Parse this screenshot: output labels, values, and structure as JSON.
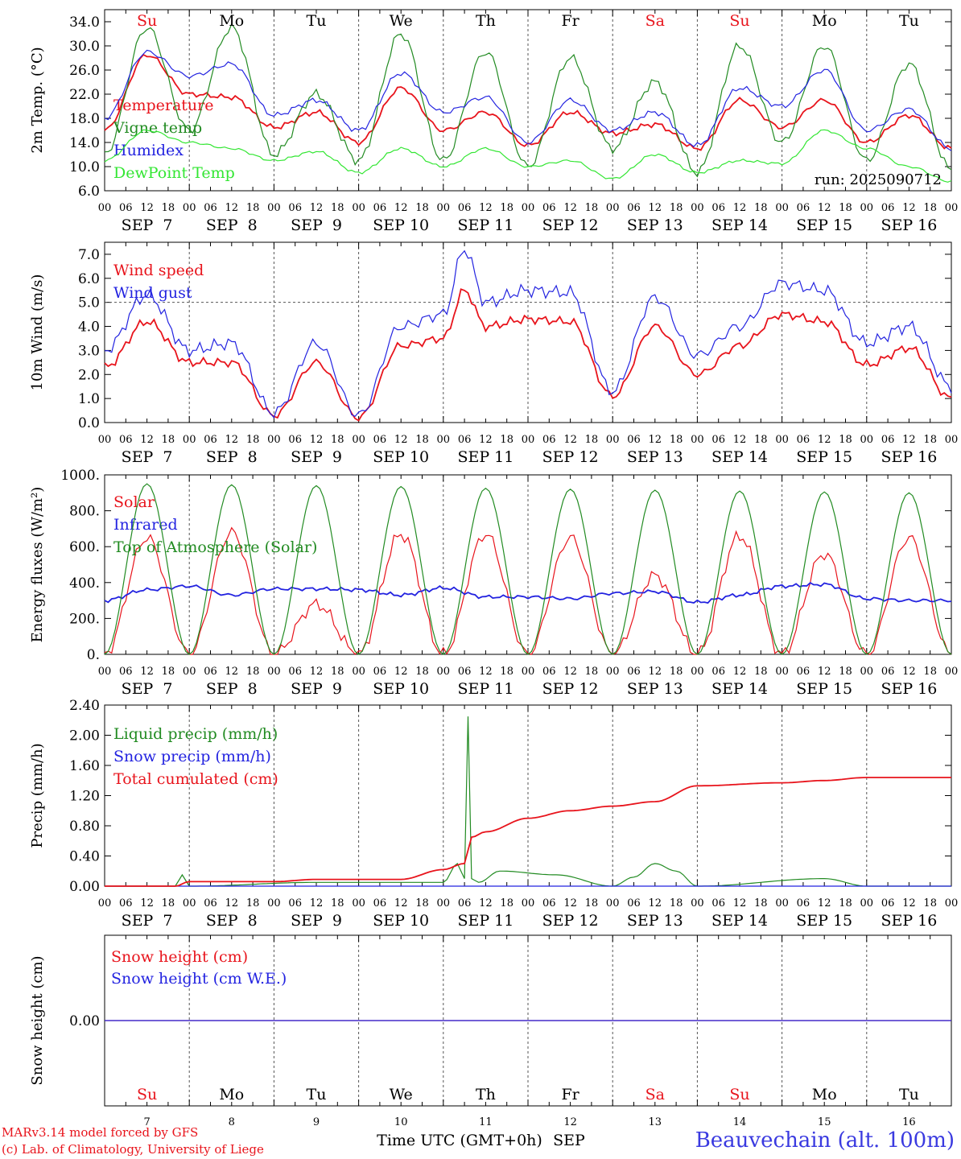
{
  "chart_data": [
    {
      "type": "line",
      "ylabel": "2m Temp. (°C)",
      "yticks": [
        "6.0",
        "10.0",
        "14.0",
        "18.0",
        "22.0",
        "26.0",
        "30.0",
        "34.0"
      ],
      "ylim": [
        6,
        36
      ],
      "annotation": "run: 2025090712",
      "series": [
        {
          "name": "Temperature",
          "color": "#e8141c",
          "x": [
            0,
            12,
            24,
            36,
            48,
            60,
            72,
            84,
            96,
            108,
            120,
            132,
            144,
            156,
            168,
            180,
            192,
            204,
            216,
            228,
            240
          ],
          "values": [
            16,
            28.5,
            22,
            21.5,
            16.5,
            19,
            14,
            23,
            16,
            19,
            13.5,
            19,
            15.5,
            17,
            13,
            21,
            16.5,
            21,
            14,
            18.5,
            13
          ]
        },
        {
          "name": "Vigne temp",
          "color": "#228b22",
          "x": [
            0,
            12,
            24,
            36,
            48,
            60,
            72,
            84,
            96,
            108,
            120,
            132,
            144,
            156,
            168,
            180,
            192,
            204,
            216,
            228,
            240
          ],
          "values": [
            12,
            33,
            16,
            33,
            12,
            22,
            11,
            32,
            11,
            29,
            10,
            28,
            13,
            24,
            9,
            30,
            14,
            30,
            11,
            27,
            9.5
          ]
        },
        {
          "name": "Humidex",
          "color": "#2323e0",
          "x": [
            0,
            12,
            24,
            36,
            48,
            60,
            72,
            84,
            96,
            108,
            120,
            132,
            144,
            156,
            168,
            180,
            192,
            204,
            216,
            228,
            240
          ],
          "values": [
            18,
            29,
            25,
            27,
            18.5,
            21,
            16,
            25.5,
            19,
            21.5,
            14,
            21,
            16,
            19,
            13.5,
            23,
            20,
            26,
            16,
            19.5,
            13
          ]
        },
        {
          "name": "DewPoint Temp",
          "color": "#33e633",
          "x": [
            0,
            12,
            24,
            36,
            48,
            60,
            72,
            84,
            96,
            108,
            120,
            132,
            144,
            156,
            168,
            180,
            192,
            204,
            216,
            228,
            240
          ],
          "values": [
            11,
            16,
            14,
            13,
            11,
            12.5,
            9,
            13,
            10,
            13,
            10,
            11,
            8,
            12,
            9,
            11,
            10.5,
            16,
            13,
            10,
            7.5
          ]
        }
      ]
    },
    {
      "type": "line",
      "ylabel": "10m Wind (m/s)",
      "yticks": [
        "0.0",
        "1.0",
        "2.0",
        "3.0",
        "4.0",
        "5.0",
        "6.0",
        "7.0"
      ],
      "ylim": [
        0,
        7.5
      ],
      "reference_line": 5.0,
      "series": [
        {
          "name": "Wind speed",
          "color": "#e8141c",
          "x": [
            0,
            12,
            24,
            36,
            48,
            60,
            72,
            84,
            96,
            102,
            108,
            120,
            132,
            144,
            156,
            168,
            180,
            192,
            204,
            216,
            228,
            240
          ],
          "values": [
            2.3,
            4.2,
            2.5,
            2.5,
            0.3,
            2.5,
            0.2,
            3.2,
            3.5,
            5.5,
            4,
            4.3,
            4.2,
            1.1,
            4,
            2,
            3.2,
            4.5,
            4.2,
            2.4,
            3.1,
            1
          ]
        },
        {
          "name": "Wind gust",
          "color": "#2323e0",
          "x": [
            0,
            12,
            24,
            36,
            48,
            60,
            72,
            84,
            96,
            102,
            108,
            120,
            132,
            144,
            156,
            168,
            180,
            192,
            204,
            216,
            228,
            240
          ],
          "values": [
            3,
            5.3,
            3,
            3.3,
            0.4,
            3.3,
            0.3,
            4,
            4.5,
            7.2,
            5,
            5.5,
            5.4,
            1.3,
            5.2,
            2.8,
            4,
            5.8,
            5.5,
            3.3,
            4,
            1.5
          ]
        }
      ]
    },
    {
      "type": "line",
      "ylabel": "Energy fluxes (W/m²)",
      "yticks": [
        "0.",
        "200.",
        "400.",
        "600.",
        "800.",
        "1000."
      ],
      "ylim": [
        0,
        1000
      ],
      "series": [
        {
          "name": "Solar",
          "color": "#e8141c",
          "x": [
            0,
            12,
            24,
            36,
            48,
            60,
            72,
            84,
            96,
            108,
            120,
            132,
            144,
            156,
            168,
            180,
            192,
            204,
            216,
            228,
            240
          ],
          "values": [
            0,
            650,
            0,
            680,
            0,
            280,
            0,
            670,
            0,
            670,
            0,
            650,
            0,
            440,
            0,
            660,
            0,
            560,
            0,
            650,
            0
          ]
        },
        {
          "name": "Infrared",
          "color": "#2323e0",
          "x": [
            0,
            12,
            24,
            36,
            48,
            60,
            72,
            84,
            96,
            108,
            120,
            132,
            144,
            156,
            168,
            180,
            192,
            204,
            216,
            228,
            240
          ],
          "values": [
            300,
            360,
            380,
            330,
            365,
            365,
            360,
            330,
            370,
            320,
            320,
            310,
            340,
            350,
            290,
            330,
            380,
            390,
            310,
            300,
            300
          ]
        },
        {
          "name": "Top of Atmosphere (Solar)",
          "color": "#228b22",
          "x": [
            0,
            12,
            24,
            36,
            48,
            60,
            72,
            84,
            96,
            108,
            120,
            132,
            144,
            156,
            168,
            180,
            192,
            204,
            216,
            228,
            240
          ],
          "values": [
            0,
            950,
            0,
            945,
            0,
            940,
            0,
            935,
            0,
            925,
            0,
            920,
            0,
            915,
            0,
            910,
            0,
            905,
            0,
            900,
            0
          ]
        }
      ]
    },
    {
      "type": "line",
      "ylabel": "Precip (mm/h)",
      "yticks": [
        "0.00",
        "0.40",
        "0.80",
        "1.20",
        "1.60",
        "2.00",
        "2.40"
      ],
      "ylim": [
        0,
        2.4
      ],
      "series": [
        {
          "name": "Liquid precip (mm/h)",
          "color": "#228b22",
          "x": [
            0,
            20,
            22,
            24,
            60,
            96,
            100,
            102,
            103,
            104,
            106,
            112,
            128,
            144,
            150,
            156,
            162,
            168,
            204,
            216,
            240
          ],
          "values": [
            0,
            0,
            0.15,
            0,
            0.05,
            0.05,
            0.3,
            0.1,
            2.25,
            0.1,
            0.05,
            0.2,
            0.15,
            0,
            0.12,
            0.3,
            0.2,
            0,
            0.1,
            0,
            0
          ]
        },
        {
          "name": "Snow precip (mm/h)",
          "color": "#2323e0",
          "x": [
            0,
            240
          ],
          "values": [
            0,
            0
          ]
        },
        {
          "name": "Total cumulated (cm)",
          "color": "#e8141c",
          "x": [
            0,
            20,
            24,
            48,
            60,
            84,
            96,
            102,
            104,
            108,
            120,
            132,
            144,
            156,
            168,
            192,
            204,
            216,
            240
          ],
          "values": [
            0,
            0,
            0.06,
            0.06,
            0.09,
            0.09,
            0.22,
            0.3,
            0.65,
            0.72,
            0.9,
            1,
            1.06,
            1.12,
            1.33,
            1.37,
            1.4,
            1.44,
            1.44
          ]
        }
      ]
    },
    {
      "type": "line",
      "ylabel": "Snow height (cm)",
      "yticks": [
        "0.00"
      ],
      "ylim": [
        -1,
        1
      ],
      "series": [
        {
          "name": "Snow height (cm)",
          "color": "#e8141c",
          "x": [
            0,
            240
          ],
          "values": [
            0,
            0
          ]
        },
        {
          "name": "Snow height (cm W.E.)",
          "color": "#2323e0",
          "x": [
            0,
            240
          ],
          "values": [
            0,
            0
          ]
        }
      ]
    }
  ],
  "time_axis": {
    "hour_ticks": [
      "00",
      "06",
      "12",
      "18"
    ],
    "dates": [
      "SEP  7",
      "SEP  8",
      "SEP  9",
      "SEP 10",
      "SEP 11",
      "SEP 12",
      "SEP 13",
      "SEP 14",
      "SEP 15",
      "SEP 16"
    ],
    "weekdays": [
      "Su",
      "Mo",
      "Tu",
      "We",
      "Th",
      "Fr",
      "Sa",
      "Su",
      "Mo",
      "Tu"
    ],
    "weekend_indices": [
      0,
      6,
      7
    ],
    "day_numbers": [
      "7",
      "8",
      "9",
      "10",
      "11",
      "12",
      "13",
      "14",
      "15",
      "16"
    ],
    "xlabel": "Time UTC (GMT+0h)",
    "month": "SEP"
  },
  "colors": {
    "weekend": "#e8141c",
    "weekday": "#000000"
  },
  "footer": {
    "model_line": "MARv3.14 model forced by GFS",
    "credit_line": "(c) Lab. of Climatology, University of Liege",
    "station": "Beauvechain (alt. 100m)"
  }
}
